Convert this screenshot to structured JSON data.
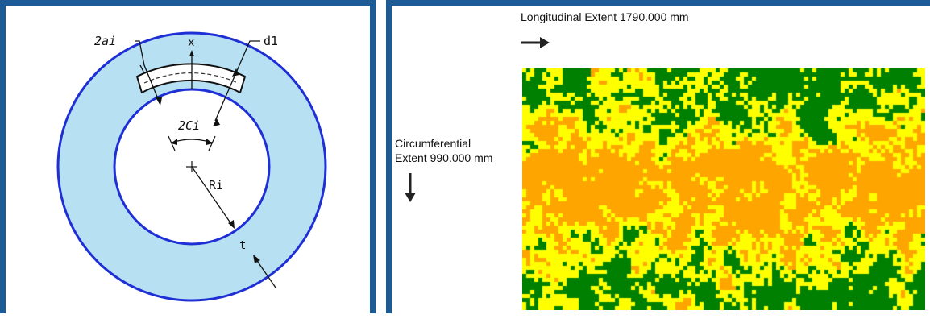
{
  "diagram": {
    "labels": {
      "two_a": "2ai",
      "x": "x",
      "d1": "d1",
      "two_c": "2Ci",
      "r": "Ri",
      "t": "t"
    },
    "colors": {
      "ring_fill": "#b7e0f2",
      "ring_stroke": "#1f2fd6",
      "frame": "#1d5b96"
    }
  },
  "map": {
    "longitudinal_label": "Longitudinal Extent 1790.000 mm",
    "circumferential_line1": "Circumferential",
    "circumferential_line2": "Extent 990.000 mm",
    "colors": {
      "low": "#008000",
      "mid": "#ffff00",
      "high": "#ffa500"
    }
  }
}
